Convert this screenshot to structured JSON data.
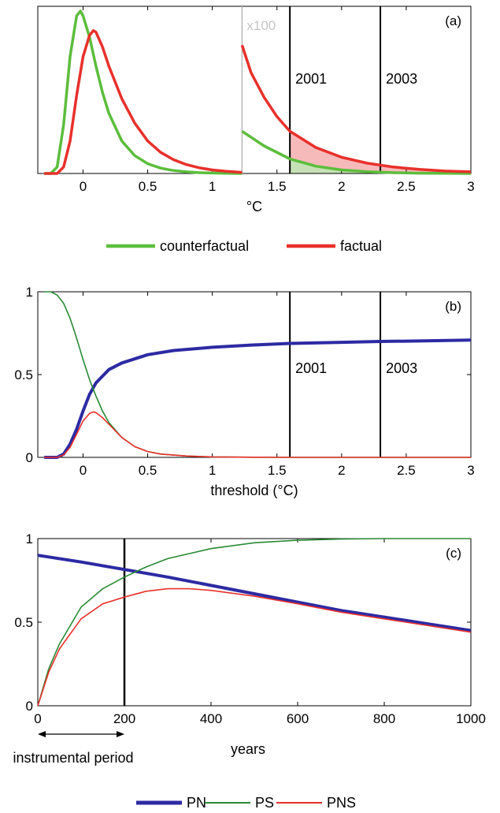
{
  "chart_data": [
    {
      "panel": "(a)",
      "type": "line",
      "xlabel": "°C",
      "xlim": [
        -0.35,
        3.0
      ],
      "xticks": [
        "0",
        "0.5",
        "1",
        "1.5",
        "2",
        "2.5",
        "3"
      ],
      "xtick_values": [
        0,
        0.5,
        1,
        1.5,
        2,
        2.5,
        3
      ],
      "yticks": [],
      "scale_annotation": "x100",
      "scale_break_x": 1.23,
      "vlines": [
        {
          "x": 1.6,
          "label": "2001"
        },
        {
          "x": 2.3,
          "label": "2003"
        }
      ],
      "series": [
        {
          "name": "counterfactual",
          "color": "#5cbd3c",
          "x": [
            -0.3,
            -0.25,
            -0.2,
            -0.15,
            -0.1,
            -0.05,
            -0.02,
            0.0,
            0.05,
            0.1,
            0.15,
            0.2,
            0.3,
            0.4,
            0.5,
            0.6,
            0.7,
            0.8,
            0.9,
            1.0,
            1.1,
            1.23,
            1.23,
            1.4,
            1.6,
            1.8,
            2.0,
            2.2,
            2.4,
            2.6,
            2.8,
            3.0
          ],
          "y": [
            0.0,
            0.0,
            0.04,
            0.3,
            0.72,
            0.97,
            1.0,
            0.97,
            0.84,
            0.66,
            0.5,
            0.37,
            0.2,
            0.11,
            0.06,
            0.033,
            0.018,
            0.01,
            0.005,
            0.003,
            0.001,
            0.0,
            0.26,
            0.17,
            0.09,
            0.045,
            0.022,
            0.011,
            0.005,
            0.002,
            0.001,
            0.0
          ]
        },
        {
          "name": "factual",
          "color": "#e8302b",
          "x": [
            -0.3,
            -0.2,
            -0.15,
            -0.1,
            -0.05,
            0.0,
            0.05,
            0.08,
            0.1,
            0.15,
            0.2,
            0.3,
            0.4,
            0.5,
            0.6,
            0.7,
            0.8,
            0.9,
            1.0,
            1.1,
            1.23,
            1.23,
            1.3,
            1.4,
            1.5,
            1.6,
            1.8,
            2.0,
            2.2,
            2.4,
            2.6,
            2.8,
            3.0
          ],
          "y": [
            0.0,
            0.0,
            0.04,
            0.2,
            0.48,
            0.72,
            0.85,
            0.88,
            0.87,
            0.78,
            0.66,
            0.46,
            0.31,
            0.2,
            0.13,
            0.085,
            0.055,
            0.035,
            0.022,
            0.014,
            0.007,
            0.79,
            0.62,
            0.47,
            0.35,
            0.26,
            0.16,
            0.1,
            0.063,
            0.04,
            0.025,
            0.015,
            0.01
          ]
        }
      ]
    },
    {
      "panel": "(b)",
      "type": "line",
      "xlabel": "threshold (°C)",
      "xlim": [
        -0.35,
        3.0
      ],
      "ylim": [
        0,
        1
      ],
      "xticks": [
        "0",
        "0.5",
        "1",
        "1.5",
        "2",
        "2.5",
        "3"
      ],
      "xtick_values": [
        0,
        0.5,
        1,
        1.5,
        2,
        2.5,
        3
      ],
      "yticks": [
        "0",
        "0.5",
        "1"
      ],
      "ytick_values": [
        0,
        0.5,
        1
      ],
      "vlines": [
        {
          "x": 1.6,
          "label": "2001"
        },
        {
          "x": 2.3,
          "label": "2003"
        }
      ],
      "series": [
        {
          "name": "PN",
          "color": "#2d2aa3",
          "x": [
            -0.3,
            -0.2,
            -0.15,
            -0.1,
            -0.05,
            0.0,
            0.05,
            0.1,
            0.2,
            0.3,
            0.5,
            0.7,
            1.0,
            1.3,
            1.6,
            2.0,
            2.3,
            2.6,
            3.0
          ],
          "y": [
            0.0,
            0.0,
            0.02,
            0.08,
            0.17,
            0.28,
            0.38,
            0.45,
            0.53,
            0.57,
            0.62,
            0.645,
            0.665,
            0.678,
            0.688,
            0.695,
            0.7,
            0.703,
            0.708
          ]
        },
        {
          "name": "PS",
          "color": "#2a8a35",
          "x": [
            -0.3,
            -0.25,
            -0.2,
            -0.15,
            -0.1,
            -0.05,
            0.0,
            0.05,
            0.1,
            0.15,
            0.2,
            0.3,
            0.4,
            0.5,
            0.6,
            0.8,
            1.0,
            1.3,
            1.6,
            2.0,
            3.0
          ],
          "y": [
            1.0,
            1.0,
            0.98,
            0.93,
            0.84,
            0.72,
            0.59,
            0.47,
            0.37,
            0.28,
            0.21,
            0.12,
            0.065,
            0.035,
            0.02,
            0.008,
            0.003,
            0.001,
            0.0,
            0.0,
            0.0
          ]
        },
        {
          "name": "PNS",
          "color": "#e8302b",
          "x": [
            -0.3,
            -0.2,
            -0.15,
            -0.1,
            -0.05,
            0.0,
            0.05,
            0.08,
            0.1,
            0.15,
            0.2,
            0.3,
            0.4,
            0.5,
            0.6,
            0.8,
            1.0,
            1.3,
            1.6,
            2.0,
            3.0
          ],
          "y": [
            0.0,
            0.0,
            0.015,
            0.06,
            0.14,
            0.22,
            0.265,
            0.275,
            0.27,
            0.24,
            0.2,
            0.12,
            0.065,
            0.035,
            0.02,
            0.008,
            0.003,
            0.001,
            0.0,
            0.0,
            0.0
          ]
        }
      ]
    },
    {
      "panel": "(c)",
      "type": "line",
      "xlabel": "years",
      "xlim": [
        0,
        1000
      ],
      "ylim": [
        0,
        1
      ],
      "xticks": [
        "0",
        "200",
        "400",
        "600",
        "800",
        "1000"
      ],
      "xtick_values": [
        0,
        200,
        400,
        600,
        800,
        1000
      ],
      "yticks": [
        "0",
        "0.5",
        "1"
      ],
      "ytick_values": [
        0,
        0.5,
        1
      ],
      "vlines": [
        {
          "x": 200,
          "label": ""
        }
      ],
      "annotation": "instrumental period",
      "annotation_range": [
        0,
        200
      ],
      "series": [
        {
          "name": "PN",
          "color": "#2d2aa3",
          "x": [
            0,
            100,
            200,
            300,
            400,
            500,
            600,
            700,
            800,
            900,
            1000
          ],
          "y": [
            0.9,
            0.86,
            0.815,
            0.77,
            0.72,
            0.67,
            0.62,
            0.57,
            0.53,
            0.49,
            0.45
          ]
        },
        {
          "name": "PS",
          "color": "#2a8a35",
          "x": [
            0,
            25,
            50,
            100,
            150,
            200,
            250,
            300,
            400,
            500,
            600,
            700,
            800,
            1000
          ],
          "y": [
            0.0,
            0.22,
            0.37,
            0.59,
            0.7,
            0.77,
            0.83,
            0.88,
            0.94,
            0.975,
            0.99,
            0.997,
            1.0,
            1.0
          ]
        },
        {
          "name": "PNS",
          "color": "#e8302b",
          "x": [
            0,
            25,
            50,
            100,
            150,
            200,
            250,
            300,
            350,
            400,
            500,
            600,
            700,
            800,
            1000
          ],
          "y": [
            0.0,
            0.2,
            0.34,
            0.52,
            0.61,
            0.65,
            0.685,
            0.7,
            0.7,
            0.69,
            0.655,
            0.61,
            0.56,
            0.52,
            0.44
          ]
        }
      ]
    }
  ],
  "legends": {
    "a": [
      {
        "label": "counterfactual",
        "color": "#5cbd3c"
      },
      {
        "label": "factual",
        "color": "#e8302b"
      }
    ],
    "c": [
      {
        "label": "PN",
        "color": "#2d2aa3"
      },
      {
        "label": "PS",
        "color": "#2a8a35"
      },
      {
        "label": "PNS",
        "color": "#e8302b"
      }
    ]
  }
}
